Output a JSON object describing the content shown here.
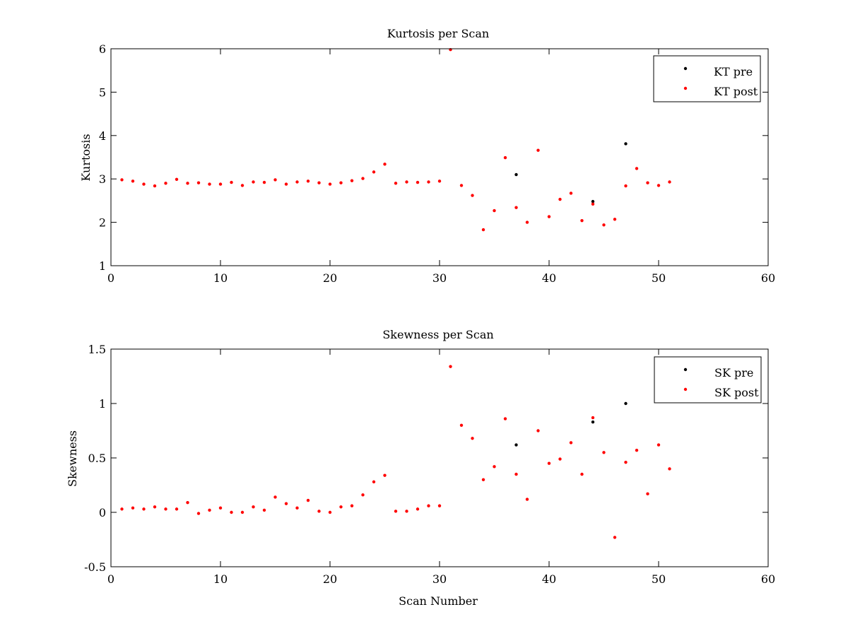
{
  "chart_data": [
    {
      "type": "scatter",
      "title": "Kurtosis per Scan",
      "xlabel": "",
      "ylabel": "Kurtosis",
      "xlim": [
        0,
        60
      ],
      "ylim": [
        1,
        6
      ],
      "xticks": [
        "0",
        "10",
        "20",
        "30",
        "40",
        "50",
        "60"
      ],
      "yticks": [
        "1",
        "2",
        "3",
        "4",
        "5",
        "6"
      ],
      "grid": false,
      "legend_position": "top-right",
      "series": [
        {
          "name": "KT pre",
          "color": "#000000",
          "points": [
            [
              37,
              3.1
            ],
            [
              44,
              2.48
            ],
            [
              47,
              3.81
            ]
          ]
        },
        {
          "name": "KT post",
          "color": "#ff0000",
          "points": [
            [
              1,
              2.98
            ],
            [
              2,
              2.95
            ],
            [
              3,
              2.88
            ],
            [
              4,
              2.84
            ],
            [
              5,
              2.9
            ],
            [
              6,
              2.99
            ],
            [
              7,
              2.9
            ],
            [
              8,
              2.91
            ],
            [
              9,
              2.88
            ],
            [
              10,
              2.88
            ],
            [
              11,
              2.92
            ],
            [
              12,
              2.85
            ],
            [
              13,
              2.93
            ],
            [
              14,
              2.92
            ],
            [
              15,
              2.98
            ],
            [
              16,
              2.88
            ],
            [
              17,
              2.93
            ],
            [
              18,
              2.95
            ],
            [
              19,
              2.91
            ],
            [
              20,
              2.88
            ],
            [
              21,
              2.91
            ],
            [
              22,
              2.96
            ],
            [
              23,
              3.01
            ],
            [
              24,
              3.16
            ],
            [
              25,
              3.34
            ],
            [
              26,
              2.9
            ],
            [
              27,
              2.93
            ],
            [
              28,
              2.92
            ],
            [
              29,
              2.93
            ],
            [
              30,
              2.95
            ],
            [
              31,
              5.98
            ],
            [
              32,
              2.85
            ],
            [
              33,
              2.62
            ],
            [
              34,
              1.83
            ],
            [
              35,
              2.27
            ],
            [
              36,
              3.49
            ],
            [
              37,
              2.34
            ],
            [
              38,
              2.0
            ],
            [
              39,
              3.66
            ],
            [
              40,
              2.13
            ],
            [
              41,
              2.53
            ],
            [
              42,
              2.67
            ],
            [
              43,
              2.04
            ],
            [
              44,
              2.42
            ],
            [
              45,
              1.94
            ],
            [
              46,
              2.07
            ],
            [
              47,
              2.84
            ],
            [
              48,
              3.24
            ],
            [
              49,
              2.91
            ],
            [
              50,
              2.85
            ],
            [
              51,
              2.93
            ]
          ]
        }
      ]
    },
    {
      "type": "scatter",
      "title": "Skewness per Scan",
      "xlabel": "Scan Number",
      "ylabel": "Skewness",
      "xlim": [
        0,
        60
      ],
      "ylim": [
        -0.5,
        1.5
      ],
      "xticks": [
        "0",
        "10",
        "20",
        "30",
        "40",
        "50",
        "60"
      ],
      "yticks": [
        "-0.5",
        "0",
        "0.5",
        "1",
        "1.5"
      ],
      "grid": false,
      "legend_position": "top-right",
      "series": [
        {
          "name": "SK pre",
          "color": "#000000",
          "points": [
            [
              37,
              0.62
            ],
            [
              44,
              0.83
            ],
            [
              47,
              1.0
            ]
          ]
        },
        {
          "name": "SK post",
          "color": "#ff0000",
          "points": [
            [
              1,
              0.03
            ],
            [
              2,
              0.04
            ],
            [
              3,
              0.03
            ],
            [
              4,
              0.05
            ],
            [
              5,
              0.03
            ],
            [
              6,
              0.03
            ],
            [
              7,
              0.09
            ],
            [
              8,
              -0.01
            ],
            [
              9,
              0.02
            ],
            [
              10,
              0.04
            ],
            [
              11,
              0.0
            ],
            [
              12,
              0.0
            ],
            [
              13,
              0.05
            ],
            [
              14,
              0.02
            ],
            [
              15,
              0.14
            ],
            [
              16,
              0.08
            ],
            [
              17,
              0.04
            ],
            [
              18,
              0.11
            ],
            [
              19,
              0.01
            ],
            [
              20,
              0.0
            ],
            [
              21,
              0.05
            ],
            [
              22,
              0.06
            ],
            [
              23,
              0.16
            ],
            [
              24,
              0.28
            ],
            [
              25,
              0.34
            ],
            [
              26,
              0.01
            ],
            [
              27,
              0.01
            ],
            [
              28,
              0.03
            ],
            [
              29,
              0.06
            ],
            [
              30,
              0.06
            ],
            [
              31,
              1.34
            ],
            [
              32,
              0.8
            ],
            [
              33,
              0.68
            ],
            [
              34,
              0.3
            ],
            [
              35,
              0.42
            ],
            [
              36,
              0.86
            ],
            [
              37,
              0.35
            ],
            [
              38,
              0.12
            ],
            [
              39,
              0.75
            ],
            [
              40,
              0.45
            ],
            [
              41,
              0.49
            ],
            [
              42,
              0.64
            ],
            [
              43,
              0.35
            ],
            [
              44,
              0.87
            ],
            [
              45,
              0.55
            ],
            [
              46,
              -0.23
            ],
            [
              47,
              0.46
            ],
            [
              48,
              0.57
            ],
            [
              49,
              0.17
            ],
            [
              50,
              0.62
            ],
            [
              51,
              0.4
            ]
          ]
        }
      ]
    }
  ]
}
